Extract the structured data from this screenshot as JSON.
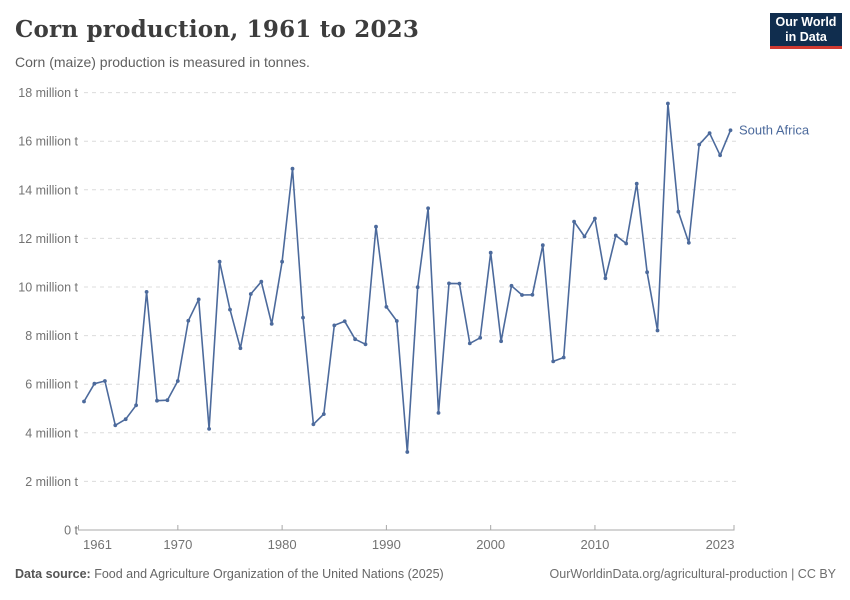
{
  "header": {
    "title": "Corn production, 1961 to 2023",
    "subtitle": "Corn (maize) production is measured in tonnes.",
    "logo": {
      "line1": "Our World",
      "line2": "in Data"
    }
  },
  "chart_data": {
    "type": "line",
    "title": "Corn production, 1961 to 2023",
    "entity": "South Africa",
    "unit": "million tonnes",
    "ylim": [
      0,
      18
    ],
    "grid": "horizontal-dashed",
    "legend_position": "line-end-label",
    "x": [
      1961,
      1962,
      1963,
      1964,
      1965,
      1966,
      1967,
      1968,
      1969,
      1970,
      1971,
      1972,
      1973,
      1974,
      1975,
      1976,
      1977,
      1978,
      1979,
      1980,
      1981,
      1982,
      1983,
      1984,
      1985,
      1986,
      1987,
      1988,
      1989,
      1990,
      1991,
      1992,
      1993,
      1994,
      1995,
      1996,
      1997,
      1998,
      1999,
      2000,
      2001,
      2002,
      2003,
      2004,
      2005,
      2006,
      2007,
      2008,
      2009,
      2010,
      2011,
      2012,
      2013,
      2014,
      2015,
      2016,
      2017,
      2018,
      2019,
      2020,
      2021,
      2022,
      2023
    ],
    "values": [
      5.29,
      6.02,
      6.13,
      4.31,
      4.56,
      5.13,
      9.8,
      5.32,
      5.34,
      6.13,
      8.61,
      9.49,
      4.16,
      11.04,
      9.07,
      7.48,
      9.71,
      10.22,
      8.48,
      11.04,
      14.87,
      8.74,
      4.35,
      4.77,
      8.42,
      8.59,
      7.85,
      7.64,
      12.48,
      9.18,
      8.6,
      3.21,
      9.99,
      13.24,
      4.82,
      10.15,
      10.14,
      7.68,
      7.91,
      11.41,
      7.77,
      10.05,
      9.67,
      9.68,
      11.72,
      6.94,
      7.1,
      12.69,
      12.08,
      12.82,
      10.36,
      12.12,
      11.79,
      14.25,
      10.61,
      8.21,
      17.55,
      13.1,
      11.82,
      15.86,
      16.33,
      15.42,
      16.45
    ],
    "ytick_values": [
      0,
      2,
      4,
      6,
      8,
      10,
      12,
      14,
      16,
      18
    ],
    "ytick_labels": [
      "0 t",
      "2 million t",
      "4 million t",
      "6 million t",
      "8 million t",
      "10 million t",
      "12 million t",
      "14 million t",
      "16 million t",
      "18 million t"
    ],
    "xticks": [
      1961,
      1970,
      1980,
      1990,
      2000,
      2010,
      2023
    ]
  },
  "series_label": "South Africa",
  "colors": {
    "line": "#4c6a9c",
    "series_label": "#4c6a9c",
    "grid": "#dcdcdc",
    "axis": "#a8a8a8",
    "tick_text": "#737373",
    "logo_bg": "#102d4e",
    "logo_red": "#d13a31"
  },
  "footer": {
    "source_label": "Data source:",
    "source_text": " Food and Agriculture Organization of the United Nations (2025)",
    "right": "OurWorldinData.org/agricultural-production | CC BY"
  }
}
